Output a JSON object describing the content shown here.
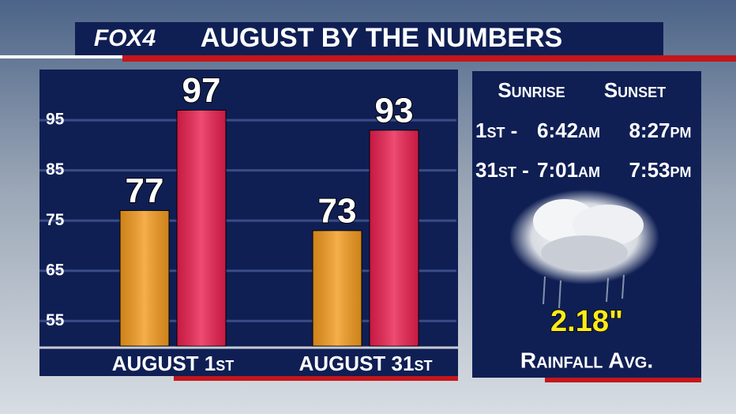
{
  "header": {
    "logo": "FOX4",
    "title": "AUGUST BY THE NUMBERS"
  },
  "chart_data": {
    "type": "bar",
    "categories": [
      "AUGUST 1st",
      "AUGUST 31st"
    ],
    "series": [
      {
        "color": "#f39a1e",
        "values": [
          77,
          73
        ]
      },
      {
        "color": "#ea1f4f",
        "values": [
          97,
          93
        ]
      }
    ],
    "ylim": [
      50,
      104
    ],
    "yticks": [
      55,
      65,
      75,
      85,
      95
    ],
    "grid": true
  },
  "panel": {
    "headers": [
      "Sunrise",
      "Sunset"
    ],
    "rows": [
      [
        "1st -",
        "6:42am",
        "8:27pm"
      ],
      [
        "31st -",
        "7:01am",
        "7:53pm"
      ]
    ],
    "rainfall": "2.18\"",
    "rainfall_label": "Rainfall Avg."
  }
}
